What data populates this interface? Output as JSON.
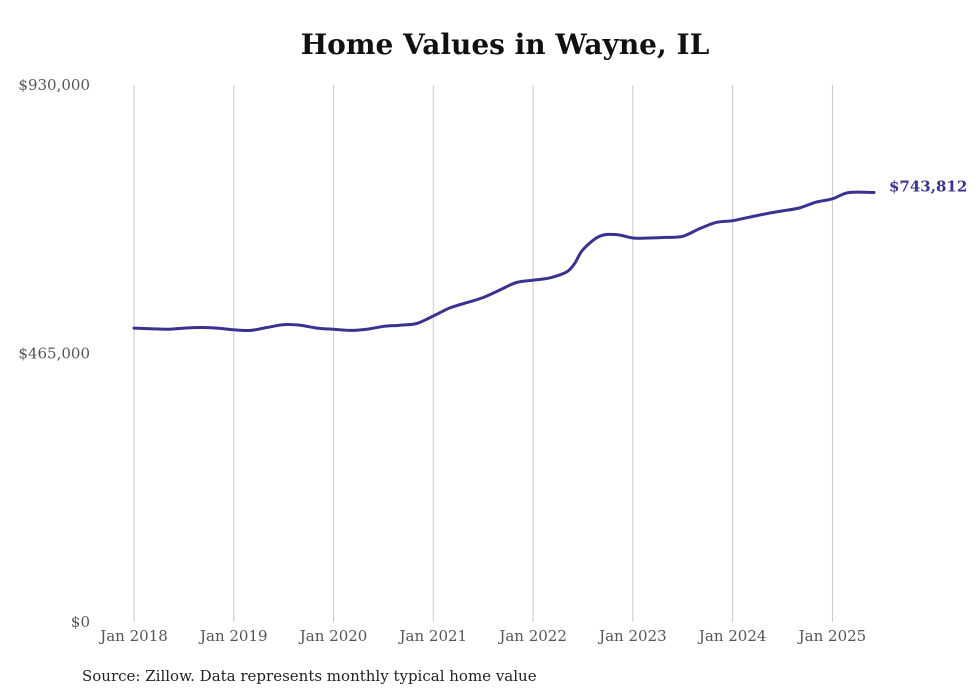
{
  "chart_data": {
    "type": "line",
    "title": "Home Values in Wayne, IL",
    "source_note": "Source: Zillow. Data represents monthly typical home value",
    "xlabel": "",
    "ylabel": "",
    "ylim": [
      0,
      930000
    ],
    "y_ticks": [
      {
        "value": 930000,
        "label": "$930,000"
      },
      {
        "value": 465000,
        "label": "$465,000"
      },
      {
        "value": 0,
        "label": "$0"
      }
    ],
    "x_ticks": [
      {
        "value": "2018-01",
        "label": "Jan 2018"
      },
      {
        "value": "2019-01",
        "label": "Jan 2019"
      },
      {
        "value": "2020-01",
        "label": "Jan 2020"
      },
      {
        "value": "2021-01",
        "label": "Jan 2021"
      },
      {
        "value": "2022-01",
        "label": "Jan 2022"
      },
      {
        "value": "2023-01",
        "label": "Jan 2023"
      },
      {
        "value": "2024-01",
        "label": "Jan 2024"
      },
      {
        "value": "2025-01",
        "label": "Jan 2025"
      }
    ],
    "xlim": [
      "2018-01",
      "2025-06"
    ],
    "grid": "vertical",
    "line_color": "#3a3290",
    "end_label": "$743,812",
    "series": [
      {
        "x": [
          "2018-01",
          "2018-03",
          "2018-05",
          "2018-07",
          "2018-09",
          "2018-11",
          "2019-01",
          "2019-03",
          "2019-05",
          "2019-07",
          "2019-09",
          "2019-11",
          "2020-01",
          "2020-03",
          "2020-05",
          "2020-07",
          "2020-09",
          "2020-11",
          "2021-01",
          "2021-03",
          "2021-05",
          "2021-07",
          "2021-09",
          "2021-11",
          "2022-01",
          "2022-03",
          "2022-05",
          "2022-06",
          "2022-07",
          "2022-09",
          "2022-11",
          "2023-01",
          "2023-03",
          "2023-05",
          "2023-07",
          "2023-09",
          "2023-11",
          "2024-01",
          "2024-03",
          "2024-05",
          "2024-07",
          "2024-09",
          "2024-11",
          "2025-01",
          "2025-03",
          "2025-06"
        ],
        "values": [
          509000,
          508000,
          507000,
          509000,
          510000,
          509000,
          506000,
          505000,
          510000,
          515000,
          514000,
          509000,
          507000,
          505000,
          507000,
          512000,
          514000,
          517000,
          530000,
          544000,
          553000,
          562000,
          575000,
          588000,
          592000,
          596000,
          606000,
          621000,
          645000,
          668000,
          671000,
          665000,
          665000,
          666000,
          668000,
          681000,
          692000,
          695000,
          701000,
          707000,
          712000,
          717000,
          727000,
          733000,
          743812,
          743812
        ]
      }
    ]
  }
}
